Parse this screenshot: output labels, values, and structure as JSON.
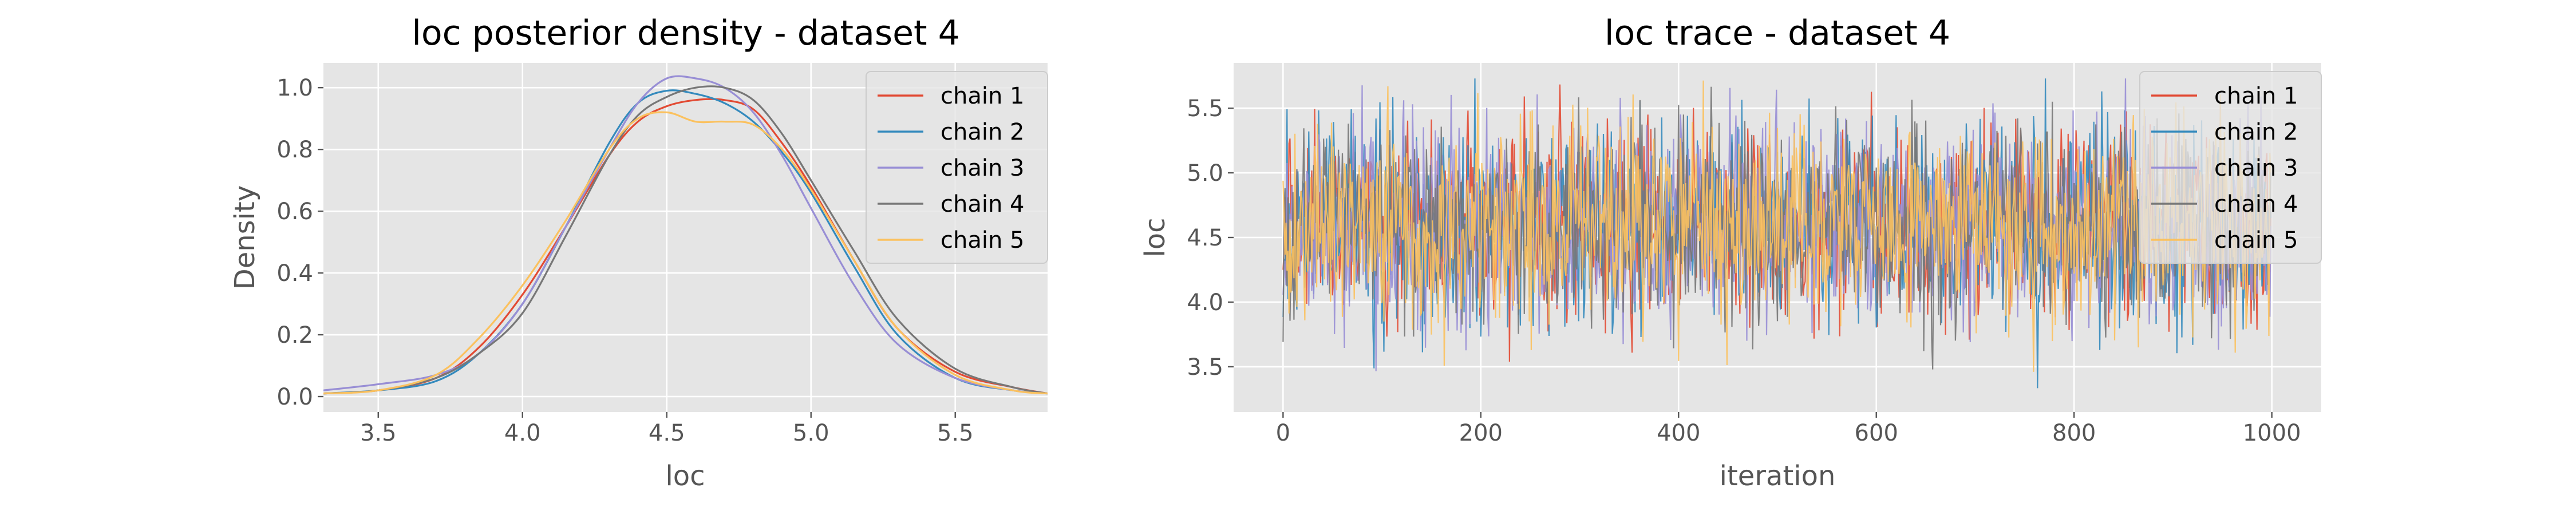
{
  "chart_data": [
    {
      "type": "line",
      "title": "loc posterior density - dataset 4",
      "xlabel": "loc",
      "ylabel": "Density",
      "xlim": [
        3.31,
        5.82
      ],
      "ylim": [
        -0.05,
        1.08
      ],
      "xticks": [
        3.5,
        4.0,
        4.5,
        5.0,
        5.5
      ],
      "xtick_labels": [
        "3.5",
        "4.0",
        "4.5",
        "5.0",
        "5.5"
      ],
      "yticks": [
        0.0,
        0.2,
        0.4,
        0.6,
        0.8,
        1.0
      ],
      "ytick_labels": [
        "0.0",
        "0.2",
        "0.4",
        "0.6",
        "0.8",
        "1.0"
      ],
      "grid": true,
      "legend_position": "top-right",
      "series": [
        {
          "name": "chain 1",
          "color": "#e24a33",
          "x": [
            3.31,
            3.5,
            3.7,
            3.85,
            4.0,
            4.15,
            4.3,
            4.4,
            4.5,
            4.6,
            4.7,
            4.8,
            4.9,
            5.0,
            5.15,
            5.3,
            5.5,
            5.7,
            5.82
          ],
          "y": [
            0.01,
            0.02,
            0.06,
            0.16,
            0.33,
            0.55,
            0.78,
            0.89,
            0.94,
            0.96,
            0.96,
            0.93,
            0.82,
            0.68,
            0.44,
            0.22,
            0.08,
            0.03,
            0.01
          ]
        },
        {
          "name": "chain 2",
          "color": "#348abd",
          "x": [
            3.31,
            3.5,
            3.7,
            3.85,
            4.0,
            4.15,
            4.3,
            4.4,
            4.5,
            4.6,
            4.7,
            4.8,
            4.9,
            5.0,
            5.15,
            5.3,
            5.5,
            5.7,
            5.82
          ],
          "y": [
            0.01,
            0.02,
            0.05,
            0.14,
            0.3,
            0.55,
            0.82,
            0.95,
            0.99,
            0.98,
            0.95,
            0.89,
            0.79,
            0.66,
            0.42,
            0.2,
            0.06,
            0.02,
            0.01
          ]
        },
        {
          "name": "chain 3",
          "color": "#988ed5",
          "x": [
            3.31,
            3.5,
            3.7,
            3.85,
            4.0,
            4.15,
            4.3,
            4.4,
            4.5,
            4.6,
            4.7,
            4.8,
            4.9,
            5.0,
            5.15,
            5.3,
            5.5,
            5.7,
            5.82
          ],
          "y": [
            0.02,
            0.04,
            0.07,
            0.14,
            0.3,
            0.55,
            0.8,
            0.95,
            1.03,
            1.03,
            1.0,
            0.92,
            0.78,
            0.61,
            0.36,
            0.17,
            0.06,
            0.02,
            0.01
          ]
        },
        {
          "name": "chain 4",
          "color": "#777777",
          "x": [
            3.31,
            3.5,
            3.7,
            3.85,
            4.0,
            4.15,
            4.3,
            4.4,
            4.5,
            4.6,
            4.7,
            4.8,
            4.9,
            5.0,
            5.15,
            5.3,
            5.5,
            5.7,
            5.82
          ],
          "y": [
            0.01,
            0.02,
            0.06,
            0.14,
            0.27,
            0.52,
            0.78,
            0.91,
            0.97,
            1.0,
            1.0,
            0.96,
            0.85,
            0.7,
            0.47,
            0.25,
            0.09,
            0.03,
            0.01
          ]
        },
        {
          "name": "chain 5",
          "color": "#fbc15e",
          "x": [
            3.31,
            3.5,
            3.7,
            3.85,
            4.0,
            4.15,
            4.3,
            4.4,
            4.5,
            4.6,
            4.7,
            4.8,
            4.9,
            5.0,
            5.15,
            5.3,
            5.5,
            5.7,
            5.82
          ],
          "y": [
            0.01,
            0.02,
            0.07,
            0.19,
            0.36,
            0.57,
            0.8,
            0.9,
            0.92,
            0.89,
            0.89,
            0.88,
            0.8,
            0.67,
            0.44,
            0.22,
            0.07,
            0.02,
            0.01
          ]
        }
      ]
    },
    {
      "type": "line",
      "title": "loc trace - dataset 4",
      "xlabel": "iteration",
      "ylabel": "loc",
      "xlim": [
        -50,
        1050
      ],
      "ylim": [
        3.15,
        5.85
      ],
      "xticks": [
        0,
        200,
        400,
        600,
        800,
        1000
      ],
      "xtick_labels": [
        "0",
        "200",
        "400",
        "600",
        "800",
        "1000"
      ],
      "yticks": [
        3.5,
        4.0,
        4.5,
        5.0,
        5.5
      ],
      "ytick_labels": [
        "3.5",
        "4.0",
        "4.5",
        "5.0",
        "5.5"
      ],
      "grid": true,
      "legend_position": "top-right",
      "iterations": 1000,
      "series": [
        {
          "name": "chain 1",
          "color": "#e24a33"
        },
        {
          "name": "chain 2",
          "color": "#348abd"
        },
        {
          "name": "chain 3",
          "color": "#988ed5"
        },
        {
          "name": "chain 4",
          "color": "#777777"
        },
        {
          "name": "chain 5",
          "color": "#fbc15e"
        }
      ],
      "value_summary": {
        "center": 4.6,
        "spread": 0.38,
        "min": 3.27,
        "max": 5.73
      }
    }
  ]
}
